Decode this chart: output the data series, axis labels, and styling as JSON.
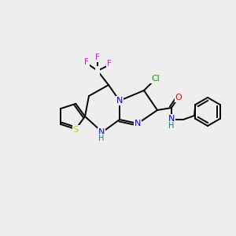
{
  "bg_color": "#eeeeee",
  "bond_color": "#000000",
  "atom_colors": {
    "N": "#0000ff",
    "O": "#ff0000",
    "Cl": "#00aa00",
    "F": "#ff00ff",
    "S": "#cccc00",
    "H_label": "#008080",
    "C": "#000000"
  },
  "font_size": 7.5,
  "bond_lw": 1.4
}
